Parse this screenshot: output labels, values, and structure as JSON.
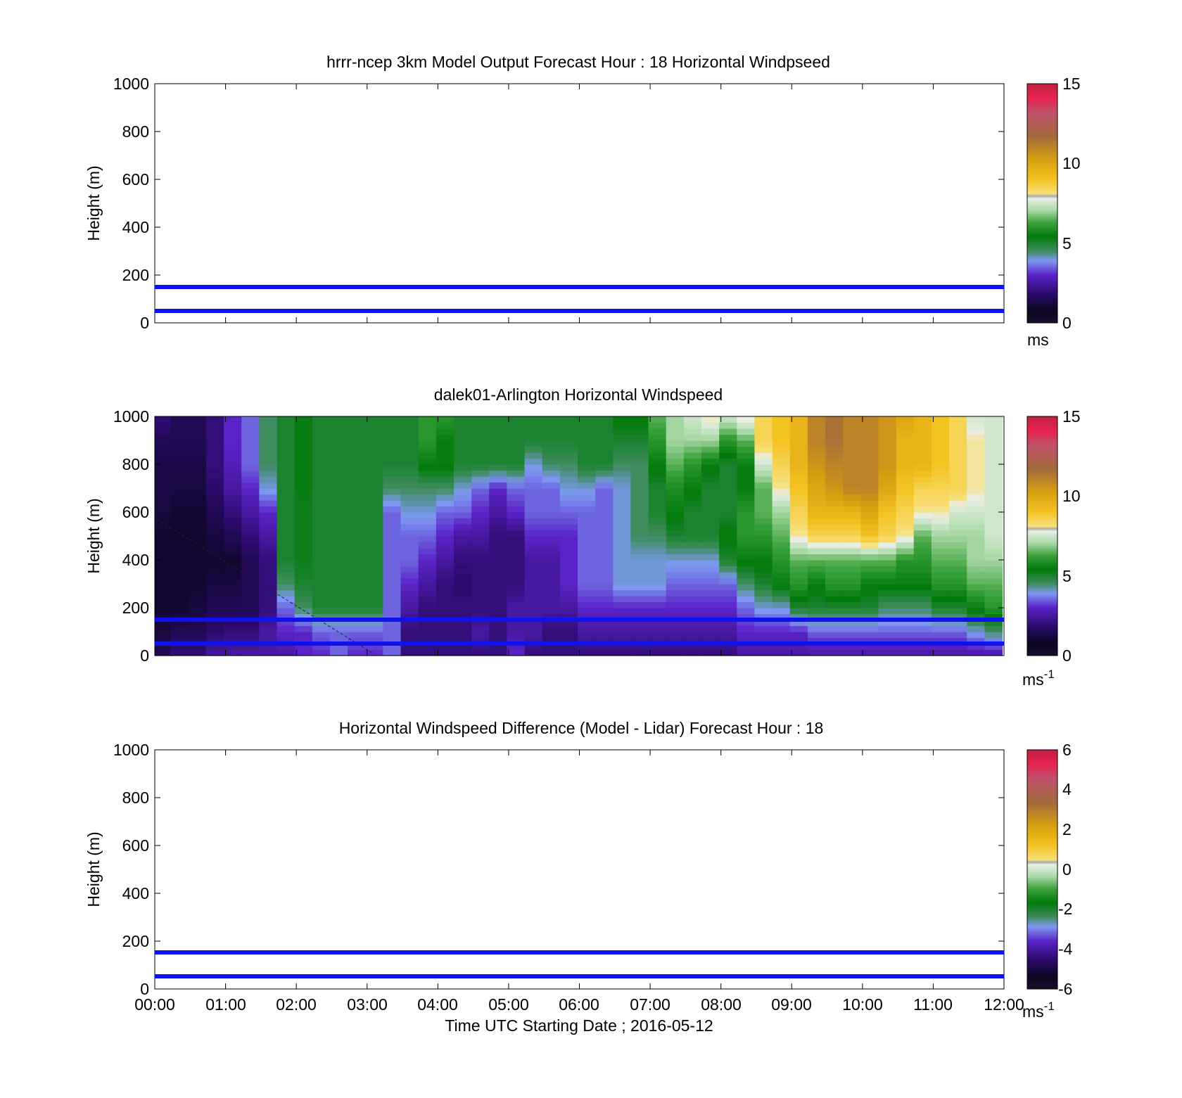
{
  "figure": {
    "x_tick_labels": [
      "00:00",
      "01:00",
      "02:00",
      "03:00",
      "04:00",
      "05:00",
      "06:00",
      "07:00",
      "08:00",
      "09:00",
      "10:00",
      "11:00",
      "12:00"
    ],
    "xlabel": "Time UTC  Starting Date ; 2016-05-12"
  },
  "chart_data": [
    {
      "type": "heatmap",
      "title": "hrrr-ncep 3km Model Output   Forecast Hour : 18 Horizontal Windpseed",
      "ylabel": "Height (m)",
      "xlim": [
        "00:00",
        "12:00"
      ],
      "ylim": [
        0,
        1000
      ],
      "y_ticks": [
        0,
        200,
        400,
        600,
        800,
        1000
      ],
      "reference_lines_m": [
        50,
        150
      ],
      "colorbar": {
        "min": 0,
        "max": 15,
        "ticks": [
          0,
          5,
          10,
          15
        ],
        "unit": "ms",
        "unit_sup": ""
      },
      "has_data": false
    },
    {
      "type": "heatmap",
      "title": "dalek01-Arlington  Horizontal Windspeed",
      "ylabel": "Height (m)",
      "xlim": [
        "00:00",
        "12:00"
      ],
      "ylim": [
        0,
        1000
      ],
      "y_ticks": [
        0,
        200,
        400,
        600,
        800,
        1000
      ],
      "reference_lines_m": [
        50,
        150
      ],
      "colorbar": {
        "min": 0,
        "max": 15,
        "ticks": [
          0,
          5,
          10,
          15
        ],
        "unit": "ms",
        "unit_sup": "-1"
      },
      "has_data": true,
      "columns_times_h": [
        0.12,
        0.35,
        0.6,
        0.85,
        1.1,
        1.35,
        1.6,
        1.85,
        2.1,
        2.35,
        2.6,
        2.85,
        3.1,
        3.35,
        3.6,
        3.85,
        4.1,
        4.35,
        4.6,
        4.85,
        5.1,
        5.35,
        5.6,
        5.85,
        6.1,
        6.35,
        6.6,
        6.85,
        7.1,
        7.35,
        7.6,
        7.85,
        8.1,
        8.35,
        8.6,
        8.85,
        9.1,
        9.35,
        9.6,
        9.85,
        10.1,
        10.35,
        10.6,
        10.85,
        11.1,
        11.35,
        11.6,
        11.85
      ],
      "height_levels_m": [
        0,
        100,
        200,
        300,
        400,
        500,
        600,
        700,
        800,
        900,
        1000
      ],
      "windspeed_profiles_ms": [
        [
          1.5,
          1.2,
          1.0,
          1.0,
          1.0,
          1.0,
          1.2,
          1.3,
          1.3,
          1.5,
          2.0
        ],
        [
          2.0,
          1.5,
          1.0,
          1.0,
          1.0,
          1.0,
          1.0,
          1.2,
          1.3,
          1.5,
          1.5
        ],
        [
          2.0,
          1.5,
          1.2,
          1.0,
          1.0,
          1.0,
          1.0,
          1.2,
          1.3,
          1.5,
          1.5
        ],
        [
          2.5,
          1.8,
          1.5,
          1.2,
          1.0,
          1.2,
          1.5,
          1.8,
          2.0,
          2.0,
          2.0
        ],
        [
          2.5,
          2.0,
          1.5,
          1.2,
          1.0,
          1.5,
          2.0,
          2.5,
          2.8,
          3.0,
          3.0
        ],
        [
          2.5,
          2.0,
          1.5,
          1.5,
          1.5,
          2.0,
          2.5,
          3.0,
          3.5,
          3.5,
          3.5
        ],
        [
          2.5,
          2.5,
          2.0,
          2.0,
          2.0,
          2.5,
          3.0,
          4.0,
          4.5,
          4.5,
          4.5
        ],
        [
          2.5,
          3.0,
          3.5,
          4.5,
          5.0,
          5.0,
          5.0,
          5.0,
          5.0,
          5.0,
          5.0
        ],
        [
          3.0,
          3.0,
          4.5,
          5.0,
          5.2,
          5.2,
          5.2,
          5.3,
          5.3,
          5.3,
          5.3
        ],
        [
          3.0,
          3.5,
          5.0,
          5.0,
          5.0,
          5.0,
          5.0,
          5.0,
          5.0,
          5.0,
          5.0
        ],
        [
          3.5,
          3.5,
          5.0,
          5.0,
          5.0,
          5.0,
          5.0,
          5.0,
          5.0,
          5.0,
          5.0
        ],
        [
          3.0,
          3.5,
          5.0,
          5.0,
          5.0,
          5.0,
          5.0,
          5.0,
          5.0,
          5.0,
          5.0
        ],
        [
          3.0,
          3.5,
          5.0,
          5.0,
          5.0,
          5.0,
          5.0,
          5.0,
          5.0,
          5.0,
          5.0
        ],
        [
          3.5,
          3.5,
          3.5,
          3.5,
          3.5,
          3.5,
          3.5,
          4.5,
          5.0,
          5.0,
          5.0
        ],
        [
          2.0,
          2.0,
          2.5,
          3.0,
          3.5,
          3.5,
          4.0,
          4.5,
          5.0,
          5.0,
          5.0
        ],
        [
          2.0,
          2.0,
          2.0,
          2.5,
          3.0,
          3.5,
          4.0,
          4.5,
          5.5,
          6.0,
          6.0
        ],
        [
          2.0,
          2.0,
          2.0,
          2.0,
          2.5,
          3.0,
          3.5,
          4.5,
          5.5,
          5.5,
          6.0
        ],
        [
          2.0,
          2.0,
          2.0,
          1.8,
          2.0,
          2.5,
          3.5,
          4.0,
          5.0,
          5.0,
          5.0
        ],
        [
          2.0,
          2.5,
          2.0,
          2.0,
          2.0,
          2.5,
          3.0,
          3.5,
          5.0,
          5.0,
          5.0
        ],
        [
          2.0,
          2.0,
          2.0,
          2.0,
          2.0,
          2.0,
          2.5,
          3.0,
          5.0,
          5.0,
          5.0
        ],
        [
          3.0,
          2.5,
          2.5,
          2.0,
          2.0,
          2.0,
          3.0,
          3.5,
          5.0,
          5.0,
          5.0
        ],
        [
          2.0,
          2.5,
          2.5,
          2.5,
          2.5,
          3.0,
          3.5,
          3.5,
          4.0,
          5.0,
          5.0
        ],
        [
          2.0,
          2.0,
          2.5,
          2.5,
          2.5,
          3.0,
          3.5,
          3.5,
          4.5,
          5.0,
          5.0
        ],
        [
          2.0,
          2.0,
          2.5,
          3.0,
          3.0,
          3.0,
          3.5,
          4.0,
          4.5,
          5.0,
          5.0
        ],
        [
          2.0,
          2.5,
          3.0,
          3.5,
          3.5,
          3.5,
          3.5,
          4.0,
          5.0,
          5.0,
          5.0
        ],
        [
          2.0,
          2.5,
          3.0,
          3.5,
          3.5,
          3.5,
          3.5,
          3.5,
          5.0,
          5.0,
          5.0
        ],
        [
          2.0,
          2.5,
          3.0,
          4.0,
          4.0,
          4.0,
          4.0,
          4.0,
          4.5,
          5.0,
          5.5
        ],
        [
          2.0,
          2.5,
          3.0,
          4.0,
          4.0,
          4.5,
          4.5,
          4.5,
          4.5,
          5.0,
          5.5
        ],
        [
          2.0,
          2.5,
          3.0,
          4.0,
          4.0,
          4.5,
          5.0,
          5.0,
          5.5,
          6.0,
          6.5
        ],
        [
          2.0,
          2.5,
          3.0,
          3.5,
          4.0,
          5.0,
          5.5,
          5.8,
          6.5,
          7.0,
          7.0
        ],
        [
          2.0,
          2.5,
          3.0,
          3.5,
          4.0,
          5.0,
          5.0,
          5.5,
          6.0,
          7.0,
          7.5
        ],
        [
          2.0,
          2.5,
          3.0,
          3.5,
          4.0,
          5.0,
          5.0,
          5.0,
          5.5,
          7.0,
          8.0
        ],
        [
          2.0,
          2.5,
          3.0,
          3.5,
          5.0,
          5.5,
          5.0,
          5.0,
          5.0,
          6.0,
          7.5
        ],
        [
          2.5,
          3.0,
          3.5,
          4.5,
          5.5,
          6.0,
          6.0,
          5.5,
          5.5,
          6.5,
          8.0
        ],
        [
          2.5,
          3.0,
          4.0,
          5.0,
          5.5,
          6.0,
          6.5,
          6.5,
          7.5,
          8.5,
          8.5
        ],
        [
          2.5,
          3.0,
          4.0,
          5.5,
          6.0,
          6.5,
          7.0,
          8.0,
          8.5,
          9.0,
          9.0
        ],
        [
          2.5,
          3.0,
          5.0,
          6.0,
          6.5,
          8.0,
          8.5,
          9.0,
          9.5,
          9.5,
          9.5
        ],
        [
          2.5,
          3.5,
          5.0,
          5.5,
          6.5,
          8.5,
          9.5,
          10.0,
          10.5,
          11.0,
          11.0
        ],
        [
          2.5,
          3.5,
          5.0,
          6.0,
          6.5,
          8.5,
          9.5,
          10.5,
          11.0,
          11.5,
          11.5
        ],
        [
          2.5,
          3.5,
          5.0,
          6.0,
          6.5,
          8.5,
          9.5,
          11.0,
          11.0,
          11.0,
          11.0
        ],
        [
          2.5,
          3.5,
          5.0,
          5.5,
          6.5,
          9.0,
          10.0,
          11.0,
          11.0,
          11.0,
          11.0
        ],
        [
          2.5,
          3.5,
          4.5,
          5.5,
          6.5,
          8.5,
          9.0,
          10.0,
          10.5,
          10.5,
          10.5
        ],
        [
          2.5,
          3.5,
          4.5,
          5.5,
          6.0,
          8.0,
          8.5,
          9.0,
          9.5,
          9.5,
          10.0
        ],
        [
          2.5,
          3.5,
          4.5,
          5.5,
          6.0,
          6.5,
          8.0,
          8.5,
          9.5,
          9.5,
          9.5
        ],
        [
          2.5,
          3.5,
          5.0,
          6.0,
          6.5,
          7.0,
          8.0,
          8.5,
          9.0,
          9.0,
          9.0
        ],
        [
          2.5,
          3.5,
          5.0,
          6.0,
          6.5,
          7.0,
          7.5,
          8.5,
          8.5,
          8.5,
          8.5
        ],
        [
          2.5,
          4.0,
          5.5,
          6.5,
          7.0,
          7.0,
          7.5,
          8.0,
          8.0,
          8.0,
          7.5
        ],
        [
          2.5,
          4.5,
          6.0,
          6.5,
          7.0,
          7.5,
          7.5,
          7.5,
          7.5,
          7.5,
          7.5
        ]
      ]
    },
    {
      "type": "heatmap",
      "title": "Horizontal Windspeed Difference (Model - Lidar) Forecast Hour : 18",
      "ylabel": "Height (m)",
      "xlim": [
        "00:00",
        "12:00"
      ],
      "ylim": [
        0,
        1000
      ],
      "y_ticks": [
        0,
        200,
        400,
        600,
        800,
        1000
      ],
      "reference_lines_m": [
        50,
        150
      ],
      "colorbar": {
        "min": -6,
        "max": 6,
        "ticks": [
          -6,
          -4,
          -2,
          0,
          2,
          4,
          6
        ],
        "unit": "ms",
        "unit_sup": "-1"
      },
      "has_data": false
    }
  ],
  "colors": {
    "reference_line": "#0d12ee",
    "colormap_stops": [
      "#7f7f7f",
      "#0b0620",
      "#2a0a6a",
      "#5a23c8",
      "#7d99f2",
      "#3f8c5f",
      "#007a0a",
      "#3ea33e",
      "#a9d9a6",
      "#e8efe6",
      "#f3c322",
      "#d9a00f",
      "#a26a3c",
      "#c0506b",
      "#e8234f",
      "#7f7f7f"
    ]
  }
}
